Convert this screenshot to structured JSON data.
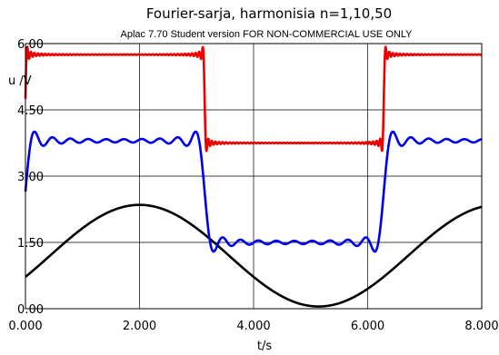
{
  "chart_data": {
    "type": "line",
    "title": "Fourier-sarja, harmonisia n=1,10,50",
    "subtitle": "Aplac 7.70 Student version FOR NON-COMMERCIAL USE ONLY",
    "xlabel": "t/s",
    "ylabel": "u /V",
    "xlim": [
      0,
      8
    ],
    "ylim": [
      0,
      6
    ],
    "x_ticks": [
      "0.000",
      "2.000",
      "4.000",
      "6.000",
      "8.000"
    ],
    "y_ticks": [
      "0.00",
      "1.50",
      "3.00",
      "4.50",
      "6.00"
    ],
    "grid": true,
    "legend": "none",
    "series": [
      {
        "color": "#000000",
        "type": "fourier_square",
        "harmonics": 1,
        "offset": 1.2,
        "low": 0,
        "high": 1.2,
        "amp_scale": 1.0,
        "period": 6.28318530718,
        "shift": 0.7
      },
      {
        "color": "#0000ee",
        "type": "fourier_square",
        "harmonics": 10,
        "offset": 1.2,
        "low": 1.5,
        "high": 3.8,
        "amp_scale": 1.0,
        "period": 6.28318530718,
        "shift": 0.0
      },
      {
        "color": "#ee0000",
        "type": "fourier_square",
        "harmonics": 50,
        "offset": 3.0,
        "low": 3.75,
        "high": 5.75,
        "amp_scale": 1.0,
        "period": 6.28318530718,
        "shift": 0.0
      }
    ]
  }
}
